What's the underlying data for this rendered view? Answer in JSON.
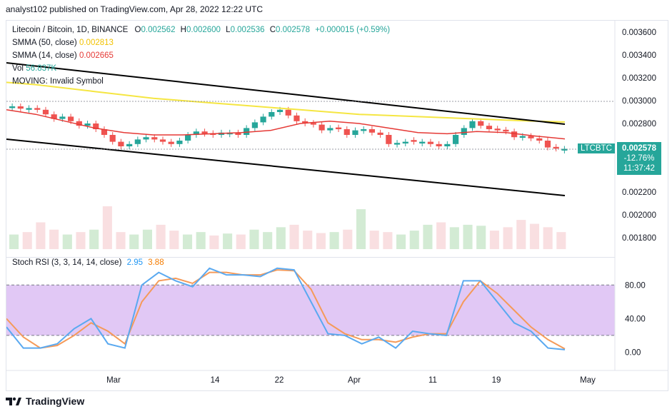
{
  "header": {
    "published": "analyst102 published on TradingView.com, Apr 28, 2022 12:22 UTC"
  },
  "legend": {
    "title": "Litecoin / Bitcoin, 1D, BINANCE",
    "o_label": "O",
    "o_val": "0.002562",
    "h_label": "H",
    "h_val": "0.002600",
    "l_label": "L",
    "l_val": "0.002536",
    "c_label": "C",
    "c_val": "0.002578",
    "change": "+0.000015 (+0.59%)",
    "smma50_label": "SMMA (50, close)",
    "smma50_val": "0.002813",
    "smma14_label": "SMMA (14, close)",
    "smma14_val": "0.002665",
    "vol_label": "Vol",
    "vol_val": "56.837K",
    "moving_label": "MOVING: Invalid Symbol",
    "stoch_label": "Stoch RSI (3, 3, 14, 14, close)",
    "stoch_k": "2.95",
    "stoch_d": "3.88"
  },
  "price_axis": [
    "0.003600",
    "0.003400",
    "0.003200",
    "0.003000",
    "0.002800",
    "0.002200",
    "0.002000",
    "0.001800"
  ],
  "stoch_axis": [
    "80.00",
    "40.00",
    "0.00"
  ],
  "time_axis": [
    "Mar",
    "14",
    "22",
    "Apr",
    "11",
    "19",
    "May"
  ],
  "price_tags": {
    "symbol": "LTCBTC",
    "last": "0.002578",
    "pct": "-12.76%",
    "countdown": "11:37:42"
  },
  "colors": {
    "up": "#26a69a",
    "down": "#ef5350",
    "smma50": "#f5e642",
    "smma14": "#e53935",
    "k": "#5aa9f0",
    "d": "#f59a59",
    "band": "#e1c8f5"
  },
  "footer": {
    "brand": "TradingView"
  },
  "chart_data": {
    "type": "candlestick",
    "symbol": "LTCBTC",
    "candles_close": [
      0.00295,
      0.00293,
      0.002935,
      0.00292,
      0.00288,
      0.00284,
      0.00286,
      0.00282,
      0.00278,
      0.0028,
      0.00275,
      0.0027,
      0.00264,
      0.0026,
      0.00262,
      0.00266,
      0.00268,
      0.00266,
      0.00264,
      0.00262,
      0.00265,
      0.0027,
      0.00273,
      0.00271,
      0.0027,
      0.00272,
      0.00272,
      0.0027,
      0.00276,
      0.00281,
      0.00286,
      0.0029,
      0.00292,
      0.00287,
      0.00282,
      0.0028,
      0.00279,
      0.00274,
      0.00276,
      0.00275,
      0.0027,
      0.00274,
      0.00275,
      0.00272,
      0.0027,
      0.00262,
      0.00263,
      0.00264,
      0.00264,
      0.00264,
      0.00262,
      0.0026,
      0.00262,
      0.0027,
      0.00276,
      0.00282,
      0.00278,
      0.00275,
      0.00274,
      0.00273,
      0.00268,
      0.00269,
      0.00267,
      0.00265,
      0.00259,
      0.00258,
      0.002578
    ],
    "up_flags": [
      1,
      0,
      1,
      0,
      0,
      0,
      1,
      0,
      0,
      1,
      0,
      0,
      0,
      0,
      1,
      1,
      1,
      0,
      0,
      0,
      1,
      1,
      1,
      0,
      0,
      1,
      1,
      0,
      1,
      1,
      1,
      1,
      1,
      0,
      0,
      0,
      0,
      0,
      1,
      0,
      0,
      1,
      1,
      0,
      0,
      0,
      1,
      1,
      0,
      1,
      0,
      0,
      1,
      1,
      1,
      1,
      0,
      0,
      0,
      0,
      0,
      1,
      0,
      0,
      0,
      0,
      1
    ],
    "smma50": [
      0.00316,
      0.00314,
      0.00311,
      0.00308,
      0.00305,
      0.00302,
      0.003,
      0.00298,
      0.00296,
      0.00294,
      0.00292,
      0.0029,
      0.00288,
      0.00287,
      0.00286,
      0.00285,
      0.00284,
      0.00283,
      0.00282,
      0.002813
    ],
    "smma14": [
      0.00292,
      0.00288,
      0.00282,
      0.00276,
      0.00272,
      0.0027,
      0.0027,
      0.00271,
      0.00272,
      0.00274,
      0.0028,
      0.00282,
      0.0028,
      0.00276,
      0.00272,
      0.00271,
      0.00273,
      0.00272,
      0.00269,
      0.002665
    ],
    "stoch_k": [
      30,
      5,
      5,
      10,
      28,
      40,
      10,
      5,
      80,
      95,
      85,
      78,
      100,
      92,
      92,
      90,
      100,
      98,
      60,
      22,
      20,
      10,
      18,
      5,
      25,
      22,
      20,
      85,
      85,
      60,
      35,
      25,
      5,
      3
    ],
    "stoch_d": [
      40,
      18,
      5,
      8,
      20,
      35,
      25,
      10,
      60,
      85,
      88,
      82,
      95,
      95,
      92,
      92,
      98,
      97,
      75,
      35,
      22,
      15,
      15,
      12,
      18,
      22,
      22,
      60,
      85,
      70,
      50,
      30,
      15,
      4
    ],
    "volume": [
      30,
      35,
      55,
      40,
      30,
      35,
      40,
      88,
      35,
      30,
      40,
      50,
      38,
      30,
      35,
      28,
      32,
      30,
      40,
      35,
      45,
      50,
      38,
      33,
      35,
      40,
      82,
      38,
      35,
      30,
      38,
      50,
      55,
      45,
      50,
      48,
      38,
      45,
      60,
      52,
      45,
      35
    ],
    "ylim": [
      0.0017,
      0.0037
    ],
    "stoch_ylim": [
      -20,
      110
    ]
  }
}
